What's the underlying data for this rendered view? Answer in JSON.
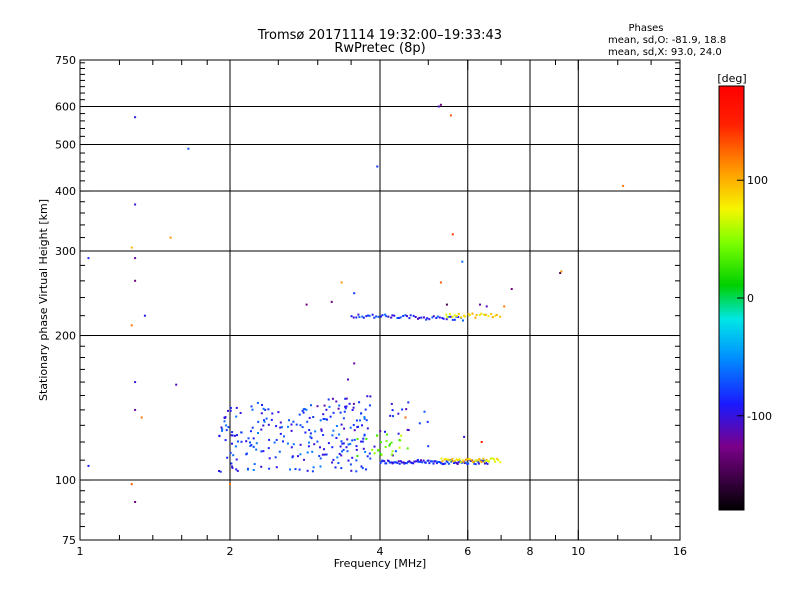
{
  "chart_data": {
    "type": "scatter",
    "title_line1": "Tromsø 20171114 19:32:00–19:33:43",
    "title_line2": "RwPretec (8p)",
    "xlabel": "Frequency [MHz]",
    "ylabel": "Stationary phase Virtual Height [km]",
    "x_scale": "log",
    "y_scale": "log",
    "xlim": [
      1,
      16
    ],
    "ylim": [
      75,
      750
    ],
    "x_ticks": [
      1,
      2,
      4,
      6,
      8,
      10,
      16
    ],
    "x_tick_labels": [
      "1",
      "2",
      "4",
      "6",
      "8",
      "10",
      "16"
    ],
    "x_grid": [
      2,
      4,
      6,
      8,
      10
    ],
    "y_ticks": [
      75,
      100,
      200,
      300,
      400,
      500,
      600,
      750
    ],
    "y_tick_labels": [
      "75",
      "100",
      "200",
      "300",
      "400",
      "500",
      "600",
      "750"
    ],
    "y_grid": [
      100,
      200,
      300,
      400,
      500,
      600
    ],
    "stats": {
      "heading": "Phases",
      "line1": "mean, sd,O: -81.9, 18.8",
      "line2": "mean, sd,X:  93.0, 24.0"
    },
    "colorbar": {
      "label": "[deg]",
      "range": [
        -180,
        180
      ],
      "ticks": [
        100,
        0,
        -100
      ],
      "tick_labels": [
        "100",
        "0",
        "-100"
      ]
    },
    "series": [
      {
        "name": "E-region trace O",
        "f": [
          4.0,
          6.6
        ],
        "h": [
          109,
          109
        ],
        "phase": -90,
        "n": 90
      },
      {
        "name": "E-region trace X",
        "f": [
          5.3,
          7.0
        ],
        "h": [
          110,
          110
        ],
        "phase": 85,
        "n": 40
      },
      {
        "name": "F-region trace O",
        "f": [
          3.5,
          5.9
        ],
        "h": [
          220,
          217
        ],
        "phase": -85,
        "n": 55
      },
      {
        "name": "F-region trace X",
        "f": [
          5.4,
          7.0
        ],
        "h": [
          220,
          220
        ],
        "phase": 80,
        "n": 25
      },
      {
        "name": "Es clutter",
        "f": [
          1.9,
          3.9
        ],
        "h": [
          104,
          145
        ],
        "phase": -80,
        "n": 220
      },
      {
        "name": "Es clutter high",
        "f": [
          2.9,
          5.0
        ],
        "h": [
          112,
          150
        ],
        "phase": -95,
        "n": 50
      },
      {
        "name": "Es clutter mixed",
        "f": [
          3.6,
          4.6
        ],
        "h": [
          112,
          125
        ],
        "phase": 40,
        "n": 25
      }
    ],
    "isolated_points": [
      {
        "f": 1.04,
        "h": 290,
        "phase": -85
      },
      {
        "f": 1.04,
        "h": 107,
        "phase": -90
      },
      {
        "f": 1.29,
        "h": 570,
        "phase": -95
      },
      {
        "f": 1.29,
        "h": 375,
        "phase": -100
      },
      {
        "f": 1.29,
        "h": 290,
        "phase": -120
      },
      {
        "f": 1.29,
        "h": 260,
        "phase": -130
      },
      {
        "f": 1.27,
        "h": 305,
        "phase": 100
      },
      {
        "f": 1.27,
        "h": 210,
        "phase": 120
      },
      {
        "f": 1.29,
        "h": 160,
        "phase": -100
      },
      {
        "f": 1.29,
        "h": 140,
        "phase": -120
      },
      {
        "f": 1.27,
        "h": 98,
        "phase": 130
      },
      {
        "f": 1.29,
        "h": 90,
        "phase": -130
      },
      {
        "f": 1.33,
        "h": 135,
        "phase": 120
      },
      {
        "f": 1.35,
        "h": 220,
        "phase": -95
      },
      {
        "f": 1.52,
        "h": 320,
        "phase": 110
      },
      {
        "f": 1.56,
        "h": 158,
        "phase": -110
      },
      {
        "f": 1.65,
        "h": 490,
        "phase": -75
      },
      {
        "f": 2.0,
        "h": 98,
        "phase": 120
      },
      {
        "f": 3.95,
        "h": 450,
        "phase": -85
      },
      {
        "f": 5.25,
        "h": 600,
        "phase": -110
      },
      {
        "f": 5.3,
        "h": 605,
        "phase": -130
      },
      {
        "f": 5.55,
        "h": 575,
        "phase": 130
      },
      {
        "f": 5.6,
        "h": 325,
        "phase": 140
      },
      {
        "f": 5.85,
        "h": 285,
        "phase": -60
      },
      {
        "f": 5.3,
        "h": 258,
        "phase": 130
      },
      {
        "f": 3.35,
        "h": 258,
        "phase": 110
      },
      {
        "f": 2.85,
        "h": 232,
        "phase": -130
      },
      {
        "f": 3.2,
        "h": 235,
        "phase": -130
      },
      {
        "f": 3.55,
        "h": 245,
        "phase": -80
      },
      {
        "f": 5.45,
        "h": 232,
        "phase": -150
      },
      {
        "f": 6.35,
        "h": 232,
        "phase": -120
      },
      {
        "f": 6.55,
        "h": 230,
        "phase": -110
      },
      {
        "f": 7.1,
        "h": 230,
        "phase": 120
      },
      {
        "f": 7.35,
        "h": 250,
        "phase": -130
      },
      {
        "f": 9.2,
        "h": 270,
        "phase": -150
      },
      {
        "f": 9.25,
        "h": 272,
        "phase": 110
      },
      {
        "f": 12.3,
        "h": 410,
        "phase": 120
      },
      {
        "f": 3.55,
        "h": 175,
        "phase": -120
      },
      {
        "f": 3.45,
        "h": 162,
        "phase": -110
      },
      {
        "f": 4.5,
        "h": 135,
        "phase": 125
      },
      {
        "f": 6.4,
        "h": 120,
        "phase": 160
      },
      {
        "f": 5.9,
        "h": 123,
        "phase": -100
      }
    ]
  }
}
